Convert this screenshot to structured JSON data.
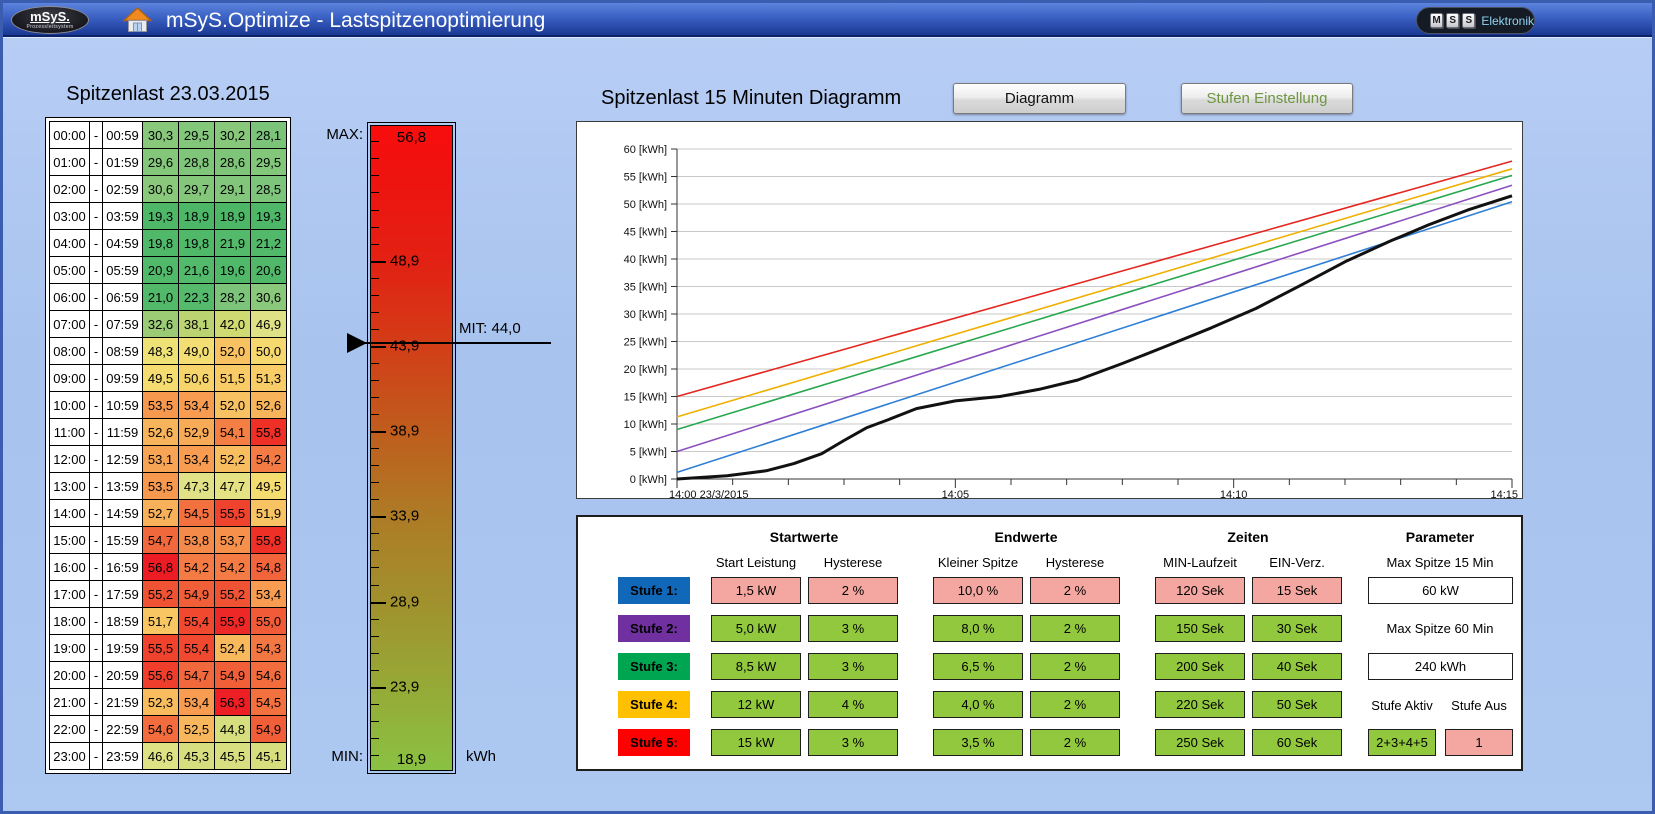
{
  "titlebar": {
    "logo_left": {
      "line1": "mSyS.",
      "line2": "Prozessleitsystem"
    },
    "title": "mSyS.Optimize - Lastspitzenoptimierung",
    "logo_right": {
      "keys": [
        "M",
        "S",
        "S"
      ],
      "text": "Elektronik"
    }
  },
  "table": {
    "title": "Spitzenlast 23.03.2015",
    "rows": [
      {
        "from": "00:00",
        "to": "00:59",
        "values": [
          "30,3",
          "29,5",
          "30,2",
          "28,1"
        ]
      },
      {
        "from": "01:00",
        "to": "01:59",
        "values": [
          "29,6",
          "28,8",
          "28,6",
          "29,5"
        ]
      },
      {
        "from": "02:00",
        "to": "02:59",
        "values": [
          "30,6",
          "29,7",
          "29,1",
          "28,5"
        ]
      },
      {
        "from": "03:00",
        "to": "03:59",
        "values": [
          "19,3",
          "18,9",
          "18,9",
          "19,3"
        ]
      },
      {
        "from": "04:00",
        "to": "04:59",
        "values": [
          "19,8",
          "19,8",
          "21,9",
          "21,2"
        ]
      },
      {
        "from": "05:00",
        "to": "05:59",
        "values": [
          "20,9",
          "21,6",
          "19,6",
          "20,6"
        ]
      },
      {
        "from": "06:00",
        "to": "06:59",
        "values": [
          "21,0",
          "22,3",
          "28,2",
          "30,6"
        ]
      },
      {
        "from": "07:00",
        "to": "07:59",
        "values": [
          "32,6",
          "38,1",
          "42,0",
          "46,9"
        ]
      },
      {
        "from": "08:00",
        "to": "08:59",
        "values": [
          "48,3",
          "49,0",
          "52,0",
          "50,0"
        ]
      },
      {
        "from": "09:00",
        "to": "09:59",
        "values": [
          "49,5",
          "50,6",
          "51,5",
          "51,3"
        ]
      },
      {
        "from": "10:00",
        "to": "10:59",
        "values": [
          "53,5",
          "53,4",
          "52,0",
          "52,6"
        ]
      },
      {
        "from": "11:00",
        "to": "11:59",
        "values": [
          "52,6",
          "52,9",
          "54,1",
          "55,8"
        ]
      },
      {
        "from": "12:00",
        "to": "12:59",
        "values": [
          "53,1",
          "53,4",
          "52,2",
          "54,2"
        ]
      },
      {
        "from": "13:00",
        "to": "13:59",
        "values": [
          "53,5",
          "47,3",
          "47,7",
          "49,5"
        ]
      },
      {
        "from": "14:00",
        "to": "14:59",
        "values": [
          "52,7",
          "54,5",
          "55,5",
          "51,9"
        ]
      },
      {
        "from": "15:00",
        "to": "15:59",
        "values": [
          "54,7",
          "53,8",
          "53,7",
          "55,8"
        ]
      },
      {
        "from": "16:00",
        "to": "16:59",
        "values": [
          "56,8",
          "54,2",
          "54,2",
          "54,8"
        ]
      },
      {
        "from": "17:00",
        "to": "17:59",
        "values": [
          "55,2",
          "54,9",
          "55,2",
          "53,4"
        ]
      },
      {
        "from": "18:00",
        "to": "18:59",
        "values": [
          "51,7",
          "55,4",
          "55,9",
          "55,0"
        ]
      },
      {
        "from": "19:00",
        "to": "19:59",
        "values": [
          "55,5",
          "55,4",
          "52,4",
          "54,3"
        ]
      },
      {
        "from": "20:00",
        "to": "20:59",
        "values": [
          "55,6",
          "54,7",
          "54,9",
          "54,6"
        ]
      },
      {
        "from": "21:00",
        "to": "21:59",
        "values": [
          "52,3",
          "53,4",
          "56,3",
          "54,5"
        ]
      },
      {
        "from": "22:00",
        "to": "22:59",
        "values": [
          "54,6",
          "52,5",
          "44,8",
          "54,9"
        ]
      },
      {
        "from": "23:00",
        "to": "23:59",
        "values": [
          "46,6",
          "45,3",
          "45,5",
          "45,1"
        ]
      }
    ]
  },
  "gauge": {
    "max_label": "MAX:",
    "max_value": "56,8",
    "min_label": "MIN:",
    "min_value": "18,9",
    "unit": "kWh",
    "scale_min": 18.9,
    "scale_max": 56.8,
    "tick_values": [
      48.9,
      43.9,
      38.9,
      33.9,
      28.9,
      23.9
    ],
    "marker": {
      "label": "MIT: 44,0",
      "value": 44.0
    }
  },
  "chart": {
    "title": "Spitzenlast 15 Minuten Diagramm",
    "diagramm_button": "Diagramm",
    "stufen_button": "Stufen Einstellung"
  },
  "chart_data": {
    "type": "line",
    "title": "Spitzenlast 15 Minuten Diagramm",
    "x_minutes": 15,
    "x_label_ticks": [
      {
        "t": 0,
        "label": "14:00 23/3/2015",
        "align": "start"
      },
      {
        "t": 5,
        "label": "14:05",
        "align": "middle"
      },
      {
        "t": 10,
        "label": "14:10",
        "align": "middle"
      },
      {
        "t": 15,
        "label": "14:15",
        "align": "end"
      }
    ],
    "y_min": 0,
    "y_max": 60,
    "y_step": 5,
    "y_unit": "[kWh]",
    "grid": true,
    "series": [
      {
        "name": "stufe5-limit",
        "color": "#e52620",
        "width": 1.6,
        "x": [
          0,
          15
        ],
        "y": [
          15,
          57.8
        ]
      },
      {
        "name": "stufe4-limit",
        "color": "#efb000",
        "width": 1.6,
        "x": [
          0,
          15
        ],
        "y": [
          11.3,
          56.4
        ]
      },
      {
        "name": "stufe3-limit",
        "color": "#28a84e",
        "width": 1.6,
        "x": [
          0,
          15
        ],
        "y": [
          9,
          55.2
        ]
      },
      {
        "name": "stufe2-limit",
        "color": "#8a50c0",
        "width": 1.6,
        "x": [
          0,
          15
        ],
        "y": [
          5,
          53.4
        ]
      },
      {
        "name": "stufe1-limit",
        "color": "#2e7fd6",
        "width": 1.6,
        "x": [
          0,
          15
        ],
        "y": [
          1.2,
          50.4
        ]
      },
      {
        "name": "verbrauch-aktuell",
        "color": "#111111",
        "width": 3,
        "x": [
          0,
          0.9,
          1.6,
          2.1,
          2.6,
          3.0,
          3.4,
          3.8,
          4.3,
          5.0,
          5.8,
          6.5,
          7.2,
          8.0,
          8.8,
          9.6,
          10.4,
          11.2,
          12.0,
          12.8,
          13.5,
          14.2,
          15.0
        ],
        "y": [
          0,
          0.6,
          1.5,
          2.8,
          4.6,
          7.0,
          9.3,
          10.8,
          12.8,
          14.2,
          15.0,
          16.3,
          18.0,
          21.0,
          24.2,
          27.5,
          31.0,
          35.2,
          39.5,
          43.2,
          46.2,
          48.9,
          51.5
        ]
      }
    ]
  },
  "panel": {
    "groups": [
      {
        "header": "Startwerte",
        "subs": [
          "Start Leistung",
          "Hysterese"
        ]
      },
      {
        "header": "Endwerte",
        "subs": [
          "Kleiner Spitze",
          "Hysterese"
        ]
      },
      {
        "header": "Zeiten",
        "subs": [
          "MIN-Laufzeit",
          "EIN-Verz."
        ]
      }
    ],
    "stufen": [
      {
        "label": "Stufe 1:",
        "color": "#1268b8",
        "tone": "pink",
        "values": [
          "1,5 kW",
          "2 %",
          "10,0 %",
          "2 %",
          "120 Sek",
          "15 Sek"
        ]
      },
      {
        "label": "Stufe 2:",
        "color": "#7030a0",
        "tone": "green",
        "values": [
          "5,0 kW",
          "3 %",
          "8,0 %",
          "2 %",
          "150 Sek",
          "30 Sek"
        ]
      },
      {
        "label": "Stufe 3:",
        "color": "#00a551",
        "tone": "green",
        "values": [
          "8,5 kW",
          "3 %",
          "6,5 %",
          "2 %",
          "200 Sek",
          "40 Sek"
        ]
      },
      {
        "label": "Stufe 4:",
        "color": "#ffc000",
        "tone": "green",
        "values": [
          "12 kW",
          "4 %",
          "4,0 %",
          "2 %",
          "220 Sek",
          "50 Sek"
        ]
      },
      {
        "label": "Stufe 5:",
        "color": "#fe0000",
        "tone": "green",
        "values": [
          "15 kW",
          "3 %",
          "3,5 %",
          "2 %",
          "250 Sek",
          "60 Sek"
        ]
      }
    ],
    "parameter": {
      "header": "Parameter",
      "max15_label": "Max Spitze 15 Min",
      "max15_value": "60 kW",
      "max60_label": "Max Spitze 60 Min",
      "max60_value": "240 kWh",
      "aktiv_label": "Stufe Aktiv",
      "aus_label": "Stufe Aus",
      "aktiv_value": "2+3+4+5",
      "aus_value": "1"
    }
  },
  "colors": {
    "page_bg": "#aac4ec",
    "pink_field": "#f4a7a1",
    "green_field": "#92c83e",
    "heat_scale": [
      [
        18.9,
        "#4db768"
      ],
      [
        22.5,
        "#55ba6c"
      ],
      [
        28.0,
        "#7ac47a"
      ],
      [
        31.0,
        "#8cc97b"
      ],
      [
        33.0,
        "#a0cc75"
      ],
      [
        38.0,
        "#bbd371"
      ],
      [
        42.0,
        "#d0da73"
      ],
      [
        45.0,
        "#d6de7e"
      ],
      [
        47.5,
        "#e2e288"
      ],
      [
        48.2,
        "#eee277"
      ],
      [
        50.0,
        "#f6d96e"
      ],
      [
        51.5,
        "#f8cb66"
      ],
      [
        52.5,
        "#f8b75c"
      ],
      [
        53.4,
        "#f79c51"
      ],
      [
        54.1,
        "#f47f44"
      ],
      [
        54.7,
        "#f2683d"
      ],
      [
        55.3,
        "#f04e32"
      ],
      [
        55.7,
        "#ee3828"
      ],
      [
        56.0,
        "#ed2025"
      ],
      [
        56.8,
        "#ec1c24"
      ]
    ]
  }
}
